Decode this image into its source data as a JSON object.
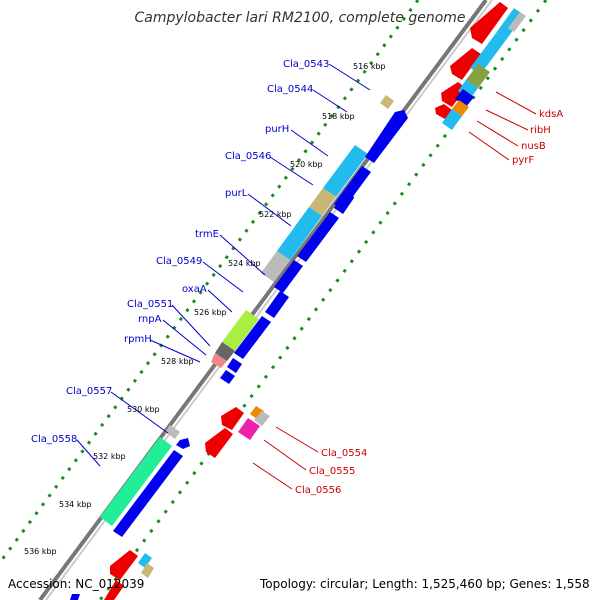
{
  "title": "Campylobacter lari RM2100, complete genome",
  "footer": {
    "accession": "Accession: NC_012039",
    "topology": "Topology: circular; Length: 1,525,460 bp; Genes: 1,558"
  },
  "colors": {
    "backbone": "#999999",
    "dots": "#1a8a1a",
    "blue": "#0000ee",
    "red": "#ee0000",
    "cyan": "#22bbee",
    "tan": "#c8b878",
    "olive": "#88a040",
    "lime": "#aaee44",
    "green": "#22ee99",
    "gray": "#bbbbbb",
    "magenta": "#ee22aa",
    "orange": "#ee8800",
    "pink": "#ee8888"
  },
  "scale": [
    "516 kbp",
    "518 kbp",
    "520 kbp",
    "522 kbp",
    "524 kbp",
    "526 kbp",
    "528 kbp",
    "530 kbp",
    "532 kbp",
    "534 kbp",
    "536 kbp"
  ],
  "left_labels": [
    "Cla_0543",
    "Cla_0544",
    "purH",
    "Cla_0546",
    "purL",
    "trmE",
    "Cla_0549",
    "oxaA",
    "Cla_0551",
    "rnpA",
    "rpmH",
    "Cla_0557",
    "Cla_0558"
  ],
  "right_labels": [
    "kdsA",
    "ribH",
    "nusB",
    "pyrF",
    "Cla_0554",
    "Cla_0555",
    "Cla_0556"
  ]
}
